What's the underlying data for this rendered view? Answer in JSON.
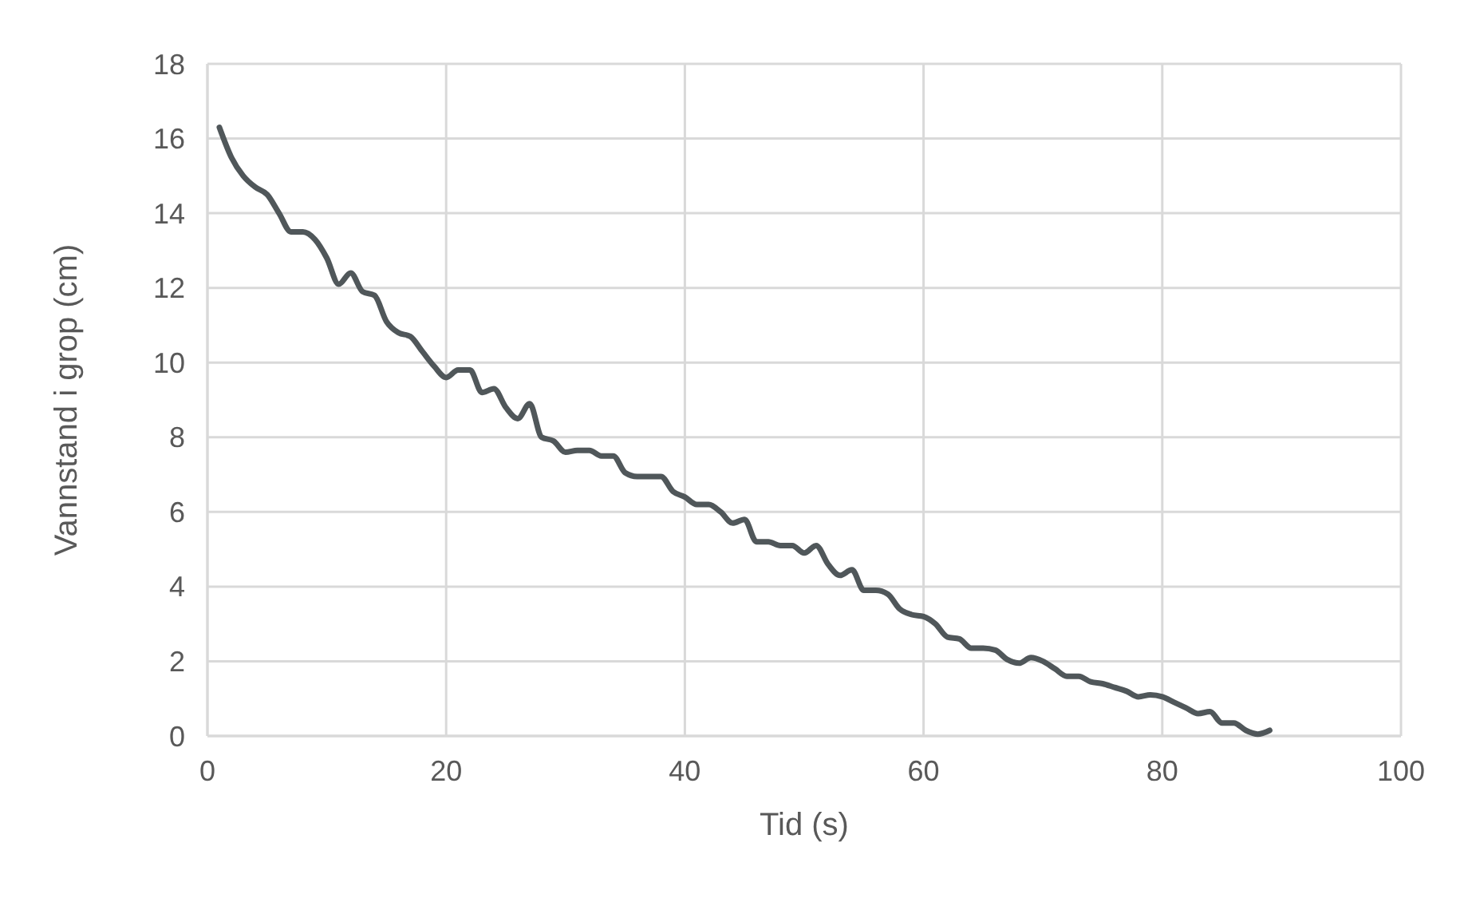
{
  "chart_data": {
    "type": "line",
    "xlabel": "Tid (s)",
    "ylabel": "Vannstand i grop (cm)",
    "x": [
      1,
      2,
      3,
      4,
      5,
      6,
      7,
      8,
      9,
      10,
      11,
      12,
      13,
      14,
      15,
      16,
      17,
      18,
      19,
      20,
      21,
      22,
      23,
      24,
      25,
      26,
      27,
      28,
      29,
      30,
      31,
      32,
      33,
      34,
      35,
      36,
      37,
      38,
      39,
      40,
      41,
      42,
      43,
      44,
      45,
      46,
      47,
      48,
      49,
      50,
      51,
      52,
      53,
      54,
      55,
      56,
      57,
      58,
      59,
      60,
      61,
      62,
      63,
      64,
      65,
      66,
      67,
      68,
      69,
      70,
      71,
      72,
      73,
      74,
      75,
      76,
      77,
      78,
      79,
      80,
      81,
      82,
      83,
      84,
      85,
      86,
      87,
      88,
      89
    ],
    "series": [
      {
        "color": "#50575a",
        "values": [
          16.3,
          15.5,
          15.0,
          14.7,
          14.5,
          14.0,
          13.5,
          13.5,
          13.3,
          12.8,
          12.1,
          12.4,
          11.9,
          11.8,
          11.1,
          10.8,
          10.7,
          10.3,
          9.9,
          9.6,
          9.8,
          9.8,
          9.2,
          9.3,
          8.8,
          8.5,
          8.9,
          8.0,
          7.9,
          7.6,
          7.65,
          7.65,
          7.5,
          7.5,
          7.05,
          6.95,
          6.95,
          6.95,
          6.55,
          6.4,
          6.2,
          6.2,
          6.0,
          5.7,
          5.8,
          5.2,
          5.2,
          5.1,
          5.1,
          4.9,
          5.1,
          4.6,
          4.3,
          4.45,
          3.9,
          3.9,
          3.8,
          3.4,
          3.25,
          3.2,
          3.0,
          2.65,
          2.6,
          2.35,
          2.35,
          2.3,
          2.05,
          1.95,
          2.1,
          2.0,
          1.8,
          1.6,
          1.6,
          1.45,
          1.4,
          1.3,
          1.2,
          1.05,
          1.1,
          1.05,
          0.9,
          0.75,
          0.6,
          0.65,
          0.35,
          0.35,
          0.15,
          0.05,
          0.15
        ]
      }
    ],
    "xlim": [
      0,
      100
    ],
    "xticks": [
      0,
      20,
      40,
      60,
      80,
      100
    ],
    "ylim": [
      0,
      18
    ],
    "yticks": [
      0,
      2,
      4,
      6,
      8,
      10,
      12,
      14,
      16,
      18
    ],
    "grid": true,
    "line_style": "solid",
    "marker": "none"
  }
}
